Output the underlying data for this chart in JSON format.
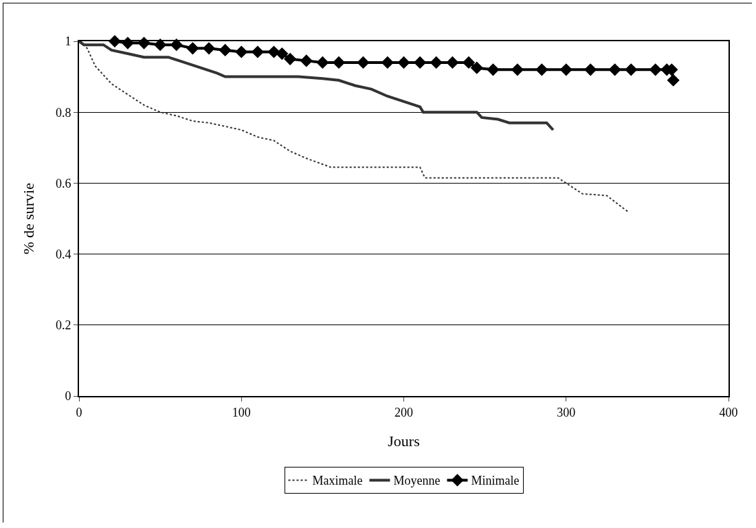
{
  "chart_data": {
    "type": "line",
    "xlabel": "Jours",
    "ylabel": "% de survie",
    "xlim": [
      0,
      400
    ],
    "xticks": [
      0,
      100,
      200,
      300,
      400
    ],
    "ylim": [
      0,
      1
    ],
    "yticks": [
      0,
      0.2,
      0.4,
      0.6,
      0.8,
      1
    ],
    "grid": "y",
    "legend": "bottom",
    "series": [
      {
        "name": "Maximale",
        "color": "#333333",
        "line_style": "dotted",
        "marker": "none",
        "x": [
          1,
          5,
          10,
          20,
          30,
          40,
          50,
          60,
          70,
          80,
          90,
          100,
          110,
          120,
          130,
          140,
          155,
          210,
          213,
          295,
          300,
          310,
          325,
          335,
          338
        ],
        "values": [
          1,
          0.98,
          0.93,
          0.88,
          0.85,
          0.82,
          0.8,
          0.79,
          0.775,
          0.77,
          0.76,
          0.75,
          0.73,
          0.72,
          0.69,
          0.67,
          0.645,
          0.645,
          0.615,
          0.615,
          0.6,
          0.57,
          0.565,
          0.53,
          0.52
        ]
      },
      {
        "name": "Moyenne",
        "color": "#333333",
        "line_style": "solid",
        "marker": "none",
        "x": [
          0,
          3,
          15,
          20,
          30,
          40,
          55,
          65,
          75,
          85,
          90,
          135,
          150,
          160,
          170,
          180,
          190,
          200,
          210,
          212,
          245,
          248,
          258,
          265,
          288,
          292
        ],
        "values": [
          1,
          0.99,
          0.99,
          0.975,
          0.965,
          0.955,
          0.955,
          0.94,
          0.925,
          0.91,
          0.9,
          0.9,
          0.895,
          0.89,
          0.875,
          0.865,
          0.845,
          0.83,
          0.815,
          0.8,
          0.8,
          0.785,
          0.78,
          0.77,
          0.77,
          0.75
        ]
      },
      {
        "name": "Minimale",
        "color": "#000000",
        "line_style": "solid",
        "marker": "diamond",
        "x": [
          22,
          30,
          40,
          50,
          60,
          70,
          80,
          90,
          100,
          110,
          120,
          125,
          130,
          140,
          150,
          160,
          175,
          190,
          200,
          210,
          220,
          230,
          240,
          245,
          255,
          270,
          285,
          300,
          315,
          330,
          340,
          355,
          362,
          365,
          366
        ],
        "values": [
          1,
          0.995,
          0.995,
          0.99,
          0.99,
          0.98,
          0.98,
          0.975,
          0.97,
          0.97,
          0.97,
          0.965,
          0.95,
          0.945,
          0.94,
          0.94,
          0.94,
          0.94,
          0.94,
          0.94,
          0.94,
          0.94,
          0.94,
          0.925,
          0.92,
          0.92,
          0.92,
          0.92,
          0.92,
          0.92,
          0.92,
          0.92,
          0.92,
          0.92,
          0.89
        ]
      }
    ]
  }
}
